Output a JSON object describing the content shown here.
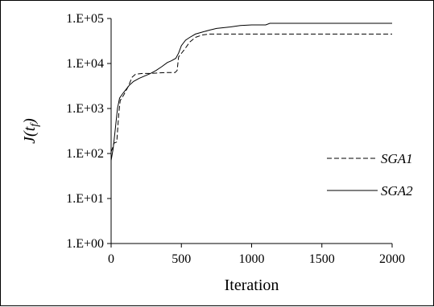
{
  "chart_data": {
    "type": "line",
    "title": "",
    "xlabel": "Iteration",
    "ylabel": "J(t",
    "ylabel_sub": "f",
    "ylabel_close": ")",
    "xlim": [
      0,
      2000
    ],
    "xticks": [
      0,
      500,
      1000,
      1500,
      2000
    ],
    "yscale": "log",
    "ylim": [
      1,
      100000
    ],
    "yticks": [
      1,
      10,
      100,
      1000,
      10000,
      100000
    ],
    "ytick_labels": [
      "1.E+00",
      "1.E+01",
      "1.E+02",
      "1.E+03",
      "1.E+04",
      "1.E+05"
    ],
    "grid": false,
    "legend_position": "right",
    "series": [
      {
        "name": "SGA1",
        "style": "dashed",
        "color": "#000000",
        "points": [
          [
            0,
            110
          ],
          [
            10,
            130
          ],
          [
            20,
            170
          ],
          [
            40,
            180
          ],
          [
            55,
            800
          ],
          [
            65,
            1500
          ],
          [
            90,
            2000
          ],
          [
            120,
            3000
          ],
          [
            150,
            5000
          ],
          [
            175,
            5800
          ],
          [
            225,
            6000
          ],
          [
            275,
            6000
          ],
          [
            350,
            6200
          ],
          [
            400,
            6300
          ],
          [
            455,
            6300
          ],
          [
            470,
            7000
          ],
          [
            480,
            14000
          ],
          [
            520,
            20000
          ],
          [
            560,
            30000
          ],
          [
            600,
            38000
          ],
          [
            650,
            43000
          ],
          [
            700,
            45000
          ],
          [
            800,
            45000
          ],
          [
            1000,
            45000
          ],
          [
            1500,
            45000
          ],
          [
            2000,
            45000
          ]
        ]
      },
      {
        "name": "SGA2",
        "style": "solid",
        "color": "#000000",
        "points": [
          [
            0,
            70
          ],
          [
            15,
            130
          ],
          [
            30,
            350
          ],
          [
            45,
            1000
          ],
          [
            60,
            1700
          ],
          [
            80,
            2100
          ],
          [
            100,
            2500
          ],
          [
            130,
            3300
          ],
          [
            160,
            4000
          ],
          [
            200,
            4700
          ],
          [
            240,
            5300
          ],
          [
            280,
            6000
          ],
          [
            320,
            7000
          ],
          [
            360,
            8500
          ],
          [
            400,
            10500
          ],
          [
            430,
            11500
          ],
          [
            460,
            13000
          ],
          [
            480,
            17000
          ],
          [
            500,
            25000
          ],
          [
            530,
            33000
          ],
          [
            560,
            38000
          ],
          [
            600,
            45000
          ],
          [
            650,
            50000
          ],
          [
            700,
            55000
          ],
          [
            750,
            60000
          ],
          [
            850,
            65000
          ],
          [
            920,
            70000
          ],
          [
            1000,
            72000
          ],
          [
            1100,
            72000
          ],
          [
            1130,
            78000
          ],
          [
            1500,
            78000
          ],
          [
            2000,
            78000
          ]
        ]
      }
    ]
  }
}
